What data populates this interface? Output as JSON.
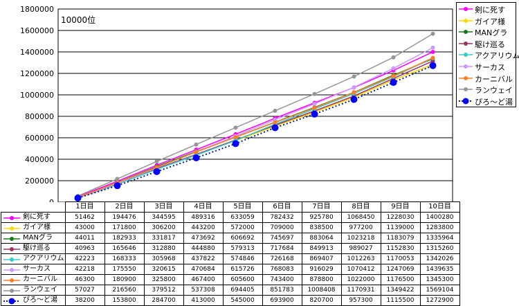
{
  "chart_data": {
    "type": "line",
    "annotation": "10000位",
    "categories": [
      "1日目",
      "2日目",
      "3日目",
      "4日目",
      "5日目",
      "6日目",
      "7日目",
      "8日目",
      "9日目",
      "10日目"
    ],
    "ylim": [
      0,
      1800000
    ],
    "y_ticks": [
      "0",
      "200000",
      "400000",
      "600000",
      "800000",
      "1000000",
      "1200000",
      "1400000",
      "1600000",
      "1800000"
    ],
    "grid": true,
    "legend_position": "right",
    "series": [
      {
        "name": "剣に死す",
        "color": "#ff00ff",
        "marker": "circle",
        "line": "solid",
        "values": [
          51462,
          194476,
          344595,
          489316,
          633059,
          782432,
          925780,
          1068450,
          1228030,
          1400280
        ]
      },
      {
        "name": "ガイア様",
        "color": "#ffd700",
        "marker": "circle",
        "line": "solid",
        "values": [
          43000,
          171800,
          306200,
          443200,
          572000,
          709000,
          838500,
          977200,
          1139000,
          1283800
        ]
      },
      {
        "name": "MANグラ",
        "color": "#1a7a1a",
        "marker": "circle",
        "line": "solid",
        "values": [
          44011,
          182933,
          331817,
          473692,
          606692,
          745697,
          883064,
          1023218,
          1183079,
          1335964
        ]
      },
      {
        "name": "駆け巡る",
        "color": "#993366",
        "marker": "circle",
        "line": "solid",
        "values": [
          40963,
          165646,
          312880,
          444880,
          579313,
          717684,
          849913,
          989027,
          1152830,
          1315260
        ]
      },
      {
        "name": "アクアリウム",
        "color": "#33cccc",
        "marker": "circle",
        "line": "solid",
        "values": [
          42223,
          168333,
          305968,
          437822,
          574846,
          726168,
          869407,
          1012263,
          1170053,
          1342026
        ]
      },
      {
        "name": "サーカス",
        "color": "#cc99ff",
        "marker": "circle",
        "line": "solid",
        "values": [
          42218,
          175550,
          320615,
          470684,
          615726,
          768083,
          916029,
          1070412,
          1247069,
          1439635
        ]
      },
      {
        "name": "カーニバル",
        "color": "#ff7f27",
        "marker": "circle",
        "line": "solid",
        "values": [
          46300,
          180900,
          325800,
          467400,
          605600,
          743400,
          878800,
          1022000,
          1176500,
          1345300
        ]
      },
      {
        "name": "ランウェイ",
        "color": "#969696",
        "marker": "circle",
        "line": "solid",
        "values": [
          57027,
          216560,
          379512,
          537308,
          694405,
          851783,
          1008408,
          1170931,
          1349422,
          1569104
        ]
      },
      {
        "name": "ぴろ～ど湯",
        "color": "#0000ff",
        "marker": "big-circle",
        "line": "dotted",
        "values": [
          38200,
          153800,
          284700,
          413000,
          545000,
          693900,
          820700,
          957300,
          1115500,
          1272900
        ]
      }
    ]
  },
  "table": {
    "numbers": [
      [
        "51462",
        "194476",
        "344595",
        "489316",
        "633059",
        "782432",
        "925780",
        "1068450",
        "1228030",
        "1400280"
      ],
      [
        "43000",
        "171800",
        "306200",
        "443200",
        "572000",
        "709000",
        "838500",
        "977200",
        "1139000",
        "1283800"
      ],
      [
        "44011",
        "182933",
        "331817",
        "473692",
        "606692",
        "745697",
        "883064",
        "1023218",
        "1183079",
        "1335964"
      ],
      [
        "40963",
        "165646",
        "312880",
        "444880",
        "579313",
        "717684",
        "849913",
        "989027",
        "1152830",
        "1315260"
      ],
      [
        "42223",
        "168333",
        "305968",
        "437822",
        "574846",
        "726168",
        "869407",
        "1012263",
        "1170053",
        "1342026"
      ],
      [
        "42218",
        "175550",
        "320615",
        "470684",
        "615726",
        "768083",
        "916029",
        "1070412",
        "1247069",
        "1439635"
      ],
      [
        "46300",
        "180900",
        "325800",
        "467400",
        "605600",
        "743400",
        "878800",
        "1022000",
        "1176500",
        "1345300"
      ],
      [
        "57027",
        "216560",
        "379512",
        "537308",
        "694405",
        "851783",
        "1008408",
        "1170931",
        "1349422",
        "1569104"
      ],
      [
        "38200",
        "153800",
        "284700",
        "413000",
        "545000",
        "693900",
        "820700",
        "957300",
        "1115500",
        "1272900"
      ]
    ]
  }
}
